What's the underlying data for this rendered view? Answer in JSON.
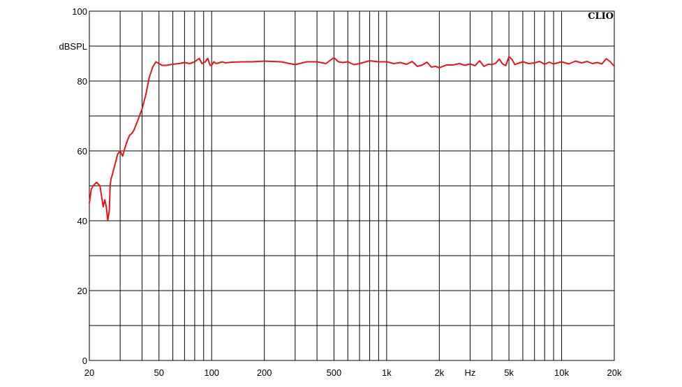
{
  "chart_data": {
    "type": "line",
    "brand": "CLIO",
    "xlabel": "Hz",
    "ylabel": "dBSPL",
    "x_scale": "log",
    "xlim": [
      20,
      20000
    ],
    "ylim": [
      0,
      100
    ],
    "grid": true,
    "x_ticks": [
      {
        "value": 20,
        "label": "20"
      },
      {
        "value": 50,
        "label": "50"
      },
      {
        "value": 100,
        "label": "100"
      },
      {
        "value": 200,
        "label": "200"
      },
      {
        "value": 500,
        "label": "500"
      },
      {
        "value": 1000,
        "label": "1k"
      },
      {
        "value": 2000,
        "label": "2k"
      },
      {
        "value": 5000,
        "label": "5k"
      },
      {
        "value": 10000,
        "label": "10k"
      },
      {
        "value": 20000,
        "label": "20k"
      }
    ],
    "y_ticks": [
      {
        "value": 0,
        "label": "0"
      },
      {
        "value": 20,
        "label": "20"
      },
      {
        "value": 40,
        "label": "40"
      },
      {
        "value": 60,
        "label": "60"
      },
      {
        "value": 80,
        "label": "80"
      },
      {
        "value": 100,
        "label": "100"
      }
    ],
    "series": [
      {
        "color": "#e8141c",
        "x": [
          20,
          20.5,
          21,
          22,
          23,
          24,
          24.5,
          25,
          25.5,
          26,
          26.3,
          26.6,
          27,
          28,
          29,
          30,
          31,
          32,
          33,
          34,
          35,
          36,
          38,
          40,
          42,
          44,
          46,
          48,
          50,
          52,
          55,
          60,
          65,
          70,
          75,
          80,
          85,
          88,
          92,
          95,
          98,
          100,
          103,
          106,
          110,
          115,
          120,
          130,
          150,
          170,
          200,
          250,
          280,
          300,
          350,
          400,
          450,
          500,
          530,
          560,
          600,
          650,
          700,
          800,
          900,
          1000,
          1100,
          1200,
          1300,
          1400,
          1500,
          1600,
          1700,
          1800,
          1900,
          2000,
          2200,
          2400,
          2600,
          2800,
          3000,
          3200,
          3400,
          3600,
          3800,
          4000,
          4200,
          4400,
          4600,
          4800,
          5000,
          5200,
          5400,
          5600,
          6000,
          6500,
          7000,
          7500,
          8000,
          8500,
          9000,
          10000,
          11000,
          12000,
          13000,
          14000,
          15000,
          16000,
          17000,
          18000,
          19000,
          20000
        ],
        "y": [
          45,
          49,
          50,
          51,
          50,
          44,
          46,
          44,
          40,
          43,
          50,
          52,
          53,
          56,
          59,
          60,
          58.5,
          61,
          63,
          64.5,
          65,
          66,
          69,
          72,
          76,
          81,
          84,
          85.5,
          85,
          84.5,
          84.5,
          84.8,
          85,
          85.3,
          85,
          85.5,
          86.5,
          85,
          85.5,
          86.5,
          84.5,
          84.5,
          85.5,
          85,
          85.2,
          85.5,
          85.2,
          85.4,
          85.5,
          85.5,
          85.7,
          85.5,
          85,
          84.7,
          85.5,
          85.5,
          85,
          86.7,
          85.5,
          85.3,
          85.5,
          84.7,
          85,
          85.8,
          85.5,
          85.5,
          85,
          85.3,
          84.8,
          85.6,
          84.2,
          84.6,
          85.4,
          84.0,
          84.2,
          83.8,
          84.6,
          84.6,
          85.0,
          84.5,
          84.9,
          84.4,
          85.8,
          84.2,
          84.8,
          84.7,
          85.1,
          86.3,
          84.9,
          84.4,
          87.0,
          86.2,
          84.7,
          85.0,
          85.5,
          85.0,
          85.2,
          85.6,
          84.8,
          85.4,
          84.9,
          85.5,
          84.9,
          85.7,
          85.2,
          85.6,
          85.0,
          85.3,
          84.9,
          86.4,
          85.5,
          84.2
        ]
      }
    ]
  }
}
